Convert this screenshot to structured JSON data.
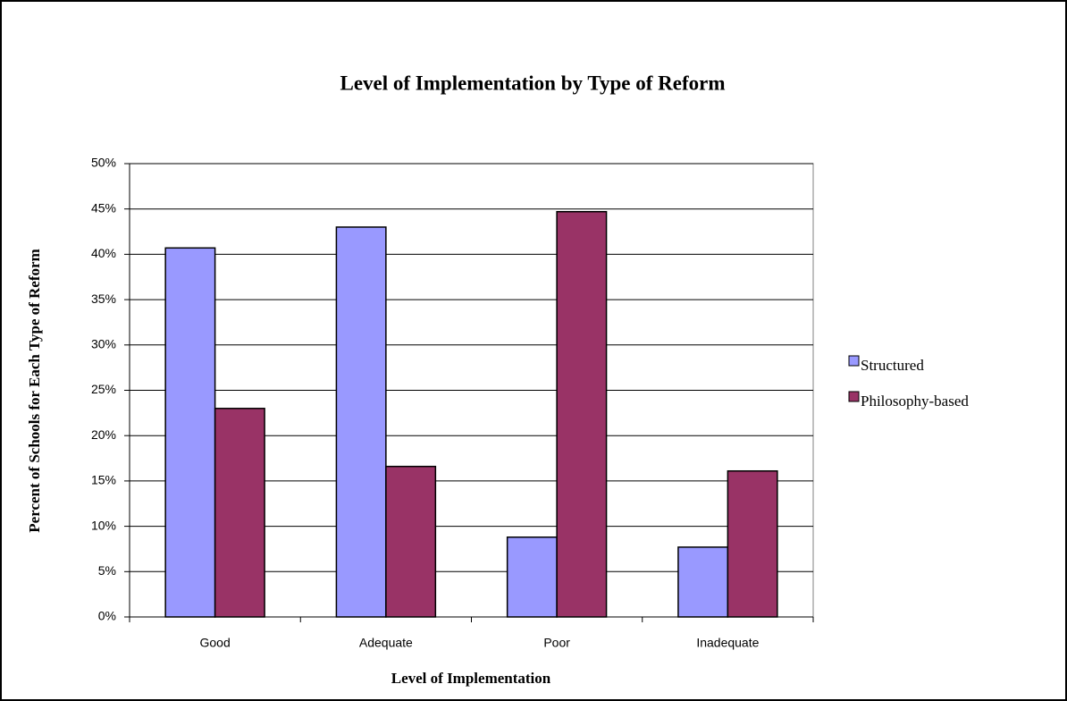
{
  "chart_data": {
    "type": "bar",
    "title": "Level of Implementation by Type of Reform",
    "x_label": "Level of Implementation",
    "y_label": "Percent of Schools for Each Type of Reform",
    "categories": [
      "Good",
      "Adequate",
      "Poor",
      "Inadequate"
    ],
    "series": [
      {
        "name": "Structured",
        "color": "#9999ff",
        "values": [
          40.7,
          43.0,
          8.8,
          7.7
        ]
      },
      {
        "name": "Philosophy-based",
        "color": "#993366",
        "values": [
          23.0,
          16.6,
          44.7,
          16.1
        ]
      }
    ],
    "ylim": [
      0,
      50
    ],
    "yticks": [
      {
        "value": 0,
        "label": "0%"
      },
      {
        "value": 5,
        "label": "5%"
      },
      {
        "value": 10,
        "label": "10%"
      },
      {
        "value": 15,
        "label": "15%"
      },
      {
        "value": 20,
        "label": "20%"
      },
      {
        "value": 25,
        "label": "25%"
      },
      {
        "value": 30,
        "label": "30%"
      },
      {
        "value": 35,
        "label": "35%"
      },
      {
        "value": 40,
        "label": "40%"
      },
      {
        "value": 45,
        "label": "45%"
      },
      {
        "value": 50,
        "label": "50%"
      }
    ],
    "grid": true,
    "legend": "right"
  }
}
